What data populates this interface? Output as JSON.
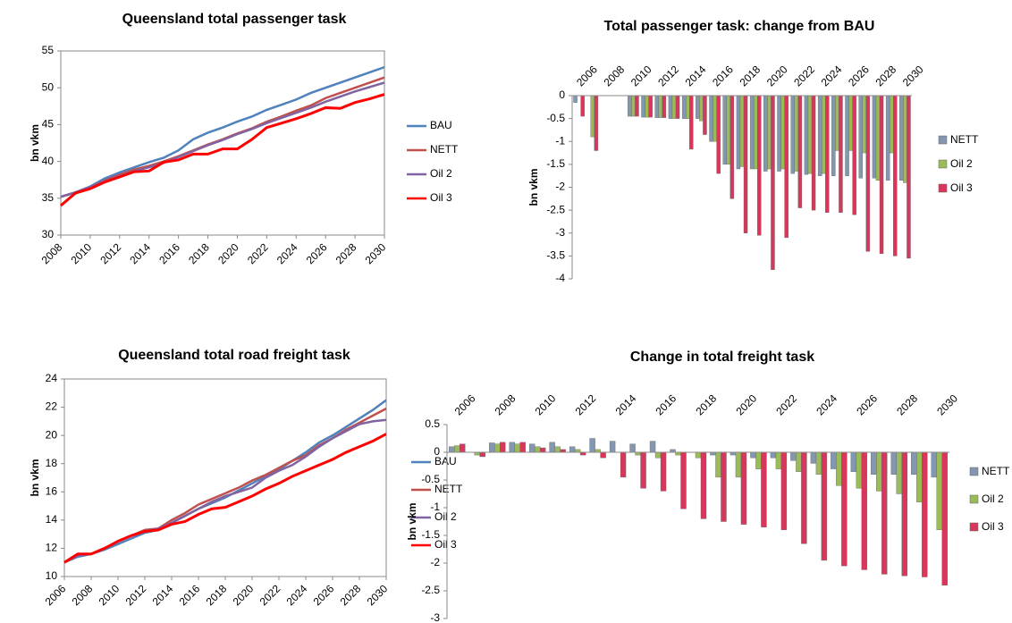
{
  "chart_data": [
    {
      "type": "line",
      "title": "Queensland total passenger task",
      "ylabel": "bn vkm",
      "x": [
        2008,
        2009,
        2010,
        2011,
        2012,
        2013,
        2014,
        2015,
        2016,
        2017,
        2018,
        2019,
        2020,
        2021,
        2022,
        2023,
        2024,
        2025,
        2026,
        2027,
        2028,
        2029,
        2030
      ],
      "xlim": [
        2008,
        2030
      ],
      "xticks": [
        2008,
        2010,
        2012,
        2014,
        2016,
        2018,
        2020,
        2022,
        2024,
        2026,
        2028,
        2030
      ],
      "ylim": [
        30,
        55
      ],
      "yticks": [
        30,
        35,
        40,
        45,
        50,
        55
      ],
      "legend": "right",
      "series": [
        {
          "name": "BAU",
          "color": "#4f81bd",
          "values": [
            35.2,
            35.8,
            36.6,
            37.7,
            38.5,
            39.2,
            39.9,
            40.5,
            41.5,
            43.0,
            43.9,
            44.6,
            45.4,
            46.1,
            47.0,
            47.7,
            48.4,
            49.3,
            50.0,
            50.7,
            51.4,
            52.1,
            52.8
          ]
        },
        {
          "name": "NETT",
          "color": "#c0504d",
          "values": [
            35.2,
            35.8,
            36.5,
            37.4,
            38.2,
            38.9,
            39.4,
            40.0,
            40.7,
            41.5,
            42.3,
            43.0,
            43.8,
            44.5,
            45.4,
            46.1,
            46.9,
            47.6,
            48.6,
            49.3,
            50.0,
            50.7,
            51.4
          ]
        },
        {
          "name": "Oil 2",
          "color": "#8064a2",
          "values": [
            35.2,
            35.8,
            36.5,
            37.3,
            38.0,
            38.7,
            39.2,
            39.8,
            40.6,
            41.4,
            42.2,
            42.9,
            43.7,
            44.4,
            45.2,
            45.9,
            46.6,
            47.3,
            48.1,
            48.8,
            49.5,
            50.1,
            50.7
          ]
        },
        {
          "name": "Oil 3",
          "color": "#ff0000",
          "values": [
            34.0,
            35.7,
            36.3,
            37.2,
            37.9,
            38.6,
            38.7,
            39.9,
            40.2,
            41.0,
            41.0,
            41.7,
            41.7,
            43.0,
            44.6,
            45.2,
            45.8,
            46.5,
            47.3,
            47.2,
            48.0,
            48.5,
            49.1
          ]
        }
      ]
    },
    {
      "type": "bar",
      "title": "Total passenger task: change from BAU",
      "ylabel": "bn vkm",
      "categories": [
        "2006",
        null,
        "2008",
        null,
        "2010",
        null,
        "2012",
        null,
        "2014",
        null,
        "2016",
        null,
        "2018",
        null,
        "2020",
        null,
        "2022",
        null,
        "2024",
        null,
        "2026",
        null,
        "2028",
        null,
        "2030"
      ],
      "ylim": [
        -4,
        0
      ],
      "yticks": [
        0,
        -0.5,
        -1,
        -1.5,
        -2,
        -2.5,
        -3,
        -3.5,
        -4
      ],
      "legend": "right",
      "series": [
        {
          "name": "NETT",
          "color": "#8497b0",
          "values": [
            -0.15,
            null,
            null,
            null,
            -0.45,
            -0.47,
            -0.48,
            -0.5,
            -0.5,
            -0.5,
            -1.0,
            -1.5,
            -1.6,
            -1.6,
            -1.65,
            -1.65,
            -1.7,
            -1.72,
            -1.75,
            -1.75,
            -1.75,
            -1.8,
            -1.8,
            -1.85,
            -1.85
          ]
        },
        {
          "name": "Oil 2",
          "color": "#9bbb59",
          "values": [
            null,
            -0.9,
            null,
            null,
            -0.45,
            -0.47,
            -0.48,
            -0.5,
            -0.5,
            -0.55,
            -1.0,
            -1.5,
            -1.55,
            -1.6,
            -1.6,
            -1.6,
            -1.65,
            -1.7,
            -1.7,
            -1.2,
            -1.2,
            -1.25,
            -1.85,
            -1.25,
            -1.9
          ]
        },
        {
          "name": "Oil 3",
          "color": "#d8365a",
          "values": [
            -0.45,
            -1.2,
            null,
            null,
            -0.45,
            -0.47,
            -0.48,
            -0.5,
            -1.17,
            -0.85,
            -1.7,
            -2.25,
            -3.0,
            -3.05,
            -3.8,
            -3.1,
            -2.45,
            -2.5,
            -2.55,
            -2.55,
            -2.6,
            -3.4,
            -3.45,
            -3.5,
            -3.55
          ]
        }
      ]
    },
    {
      "type": "line",
      "title": "Queensland total road freight task",
      "ylabel": "bn vkm",
      "x": [
        2006,
        2007,
        2008,
        2009,
        2010,
        2011,
        2012,
        2013,
        2014,
        2015,
        2016,
        2017,
        2018,
        2019,
        2020,
        2021,
        2022,
        2023,
        2024,
        2025,
        2026,
        2027,
        2028,
        2029,
        2030
      ],
      "xlim": [
        2006,
        2030
      ],
      "xticks": [
        2006,
        2008,
        2010,
        2012,
        2014,
        2016,
        2018,
        2020,
        2022,
        2024,
        2026,
        2028,
        2030
      ],
      "ylim": [
        10,
        24
      ],
      "yticks": [
        10,
        12,
        14,
        16,
        18,
        20,
        22,
        24
      ],
      "legend": "right",
      "series": [
        {
          "name": "BAU",
          "color": "#4f81bd",
          "values": [
            11.0,
            11.4,
            11.6,
            11.9,
            12.3,
            12.7,
            13.1,
            13.3,
            13.8,
            14.3,
            14.8,
            15.2,
            15.6,
            16.1,
            16.6,
            17.1,
            17.6,
            18.2,
            18.8,
            19.5,
            20.0,
            20.6,
            21.2,
            21.8,
            22.5
          ]
        },
        {
          "name": "NETT",
          "color": "#c0504d",
          "values": [
            11.0,
            11.5,
            11.6,
            12.0,
            12.5,
            12.9,
            13.3,
            13.4,
            14.0,
            14.5,
            15.1,
            15.5,
            15.9,
            16.3,
            16.8,
            17.2,
            17.7,
            18.2,
            18.6,
            19.3,
            19.8,
            20.4,
            20.9,
            21.4,
            21.9
          ]
        },
        {
          "name": "Oil 2",
          "color": "#8064a2",
          "values": [
            11.0,
            11.5,
            11.6,
            12.0,
            12.5,
            12.9,
            13.2,
            13.4,
            13.8,
            14.3,
            14.8,
            15.3,
            15.7,
            16.0,
            16.3,
            17.0,
            17.5,
            17.9,
            18.5,
            19.2,
            19.8,
            20.3,
            20.8,
            21.0,
            21.1
          ]
        },
        {
          "name": "Oil 3",
          "color": "#ff0000",
          "values": [
            11.0,
            11.6,
            11.6,
            12.0,
            12.5,
            12.9,
            13.2,
            13.3,
            13.7,
            13.9,
            14.4,
            14.8,
            14.9,
            15.3,
            15.7,
            16.2,
            16.6,
            17.1,
            17.5,
            17.9,
            18.3,
            18.8,
            19.2,
            19.6,
            20.1
          ]
        }
      ]
    },
    {
      "type": "bar",
      "title": "Change in total freight task",
      "ylabel": "bn vkm",
      "categories": [
        "2006",
        null,
        "2008",
        null,
        "2010",
        null,
        "2012",
        null,
        "2014",
        null,
        "2016",
        null,
        "2018",
        null,
        "2020",
        null,
        "2022",
        null,
        "2024",
        null,
        "2026",
        null,
        "2028",
        null,
        "2030"
      ],
      "ylim": [
        -3,
        0.5
      ],
      "yticks": [
        0.5,
        0,
        -0.5,
        -1,
        -1.5,
        -2,
        -2.5,
        -3
      ],
      "legend": "right",
      "series": [
        {
          "name": "NETT",
          "color": "#8497b0",
          "values": [
            0.1,
            0,
            0.17,
            0.18,
            0.15,
            0.18,
            0.1,
            0.25,
            0.2,
            0.15,
            0.2,
            0.05,
            0,
            -0.05,
            -0.05,
            -0.1,
            -0.1,
            -0.15,
            -0.2,
            -0.3,
            -0.35,
            -0.4,
            -0.4,
            -0.4,
            -0.45
          ]
        },
        {
          "name": "Oil 2",
          "color": "#9bbb59",
          "values": [
            0.12,
            -0.05,
            0.15,
            0.15,
            0.1,
            0.1,
            0.05,
            0.05,
            0,
            -0.05,
            -0.1,
            -0.05,
            -0.1,
            -0.45,
            -0.45,
            -0.3,
            -0.3,
            -0.35,
            -0.4,
            -0.6,
            -0.65,
            -0.7,
            -0.75,
            -0.9,
            -1.4
          ]
        },
        {
          "name": "Oil 3",
          "color": "#d8365a",
          "values": [
            0.15,
            -0.08,
            0.18,
            0.18,
            0.08,
            0.05,
            -0.05,
            -0.1,
            -0.45,
            -0.65,
            -0.7,
            -1.02,
            -1.2,
            -1.25,
            -1.3,
            -1.35,
            -1.4,
            -1.65,
            -1.95,
            -2.05,
            -2.12,
            -2.2,
            -2.23,
            -2.25,
            -2.4
          ]
        }
      ]
    }
  ]
}
